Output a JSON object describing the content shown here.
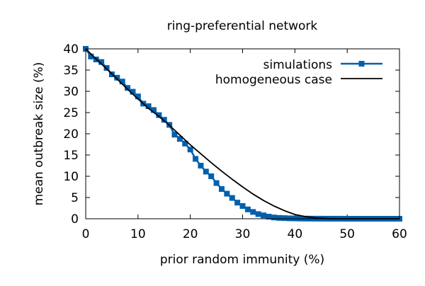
{
  "chart_data": {
    "type": "line",
    "title": "ring-preferential network",
    "xlabel": "prior random immunity (%)",
    "ylabel": "mean outbreak size (%)",
    "xlim": [
      0,
      60
    ],
    "ylim": [
      0,
      40
    ],
    "x_ticks": [
      0,
      10,
      20,
      30,
      40,
      50,
      60
    ],
    "y_ticks": [
      0,
      5,
      10,
      15,
      20,
      25,
      30,
      35,
      40
    ],
    "legend_position": "top-right",
    "series": [
      {
        "name": "simulations",
        "color": "#0060ad",
        "marker": "square",
        "x": [
          0,
          1,
          2,
          3,
          4,
          5,
          6,
          7,
          8,
          9,
          10,
          11,
          12,
          13,
          14,
          15,
          16,
          17,
          18,
          19,
          20,
          21,
          22,
          23,
          24,
          25,
          26,
          27,
          28,
          29,
          30,
          31,
          32,
          33,
          34,
          35,
          36,
          37,
          38,
          39,
          40,
          41,
          42,
          43,
          44,
          45,
          46,
          47,
          48,
          49,
          50,
          51,
          52,
          53,
          54,
          55,
          56,
          57,
          58,
          59,
          60
        ],
        "y": [
          40.0,
          38.2,
          37.5,
          36.9,
          35.5,
          34.0,
          33.2,
          32.3,
          30.8,
          29.9,
          28.8,
          27.1,
          26.5,
          25.6,
          24.4,
          23.3,
          22.1,
          19.8,
          18.8,
          17.7,
          16.3,
          14.1,
          12.5,
          11.1,
          10.0,
          8.4,
          7.0,
          5.9,
          4.9,
          3.8,
          3.0,
          2.2,
          1.6,
          1.1,
          0.8,
          0.5,
          0.3,
          0.2,
          0.15,
          0.1,
          0.08,
          0.05,
          0.04,
          0.03,
          0.02,
          0.02,
          0.01,
          0.01,
          0.01,
          0.01,
          0.0,
          0.0,
          0.0,
          0.0,
          0.0,
          0.0,
          0.0,
          0.0,
          0.0,
          0.0,
          0.0
        ]
      },
      {
        "name": "homogeneous case",
        "color": "#000000",
        "marker": "none",
        "x": [
          0,
          2,
          4,
          6,
          8,
          10,
          12,
          14,
          16,
          18,
          20,
          22,
          24,
          26,
          28,
          30,
          32,
          34,
          36,
          38,
          40,
          42,
          44,
          46,
          47,
          48,
          50,
          52,
          54,
          56,
          58,
          60
        ],
        "y": [
          40.0,
          37.6,
          35.3,
          32.9,
          30.5,
          28.2,
          26.0,
          24.1,
          22.0,
          19.7,
          17.4,
          15.3,
          13.2,
          11.2,
          9.3,
          7.5,
          5.8,
          4.3,
          3.0,
          1.9,
          1.0,
          0.5,
          0.2,
          0.05,
          0.0,
          0.0,
          0.0,
          0.0,
          0.0,
          0.0,
          0.0,
          0.0
        ]
      }
    ]
  }
}
